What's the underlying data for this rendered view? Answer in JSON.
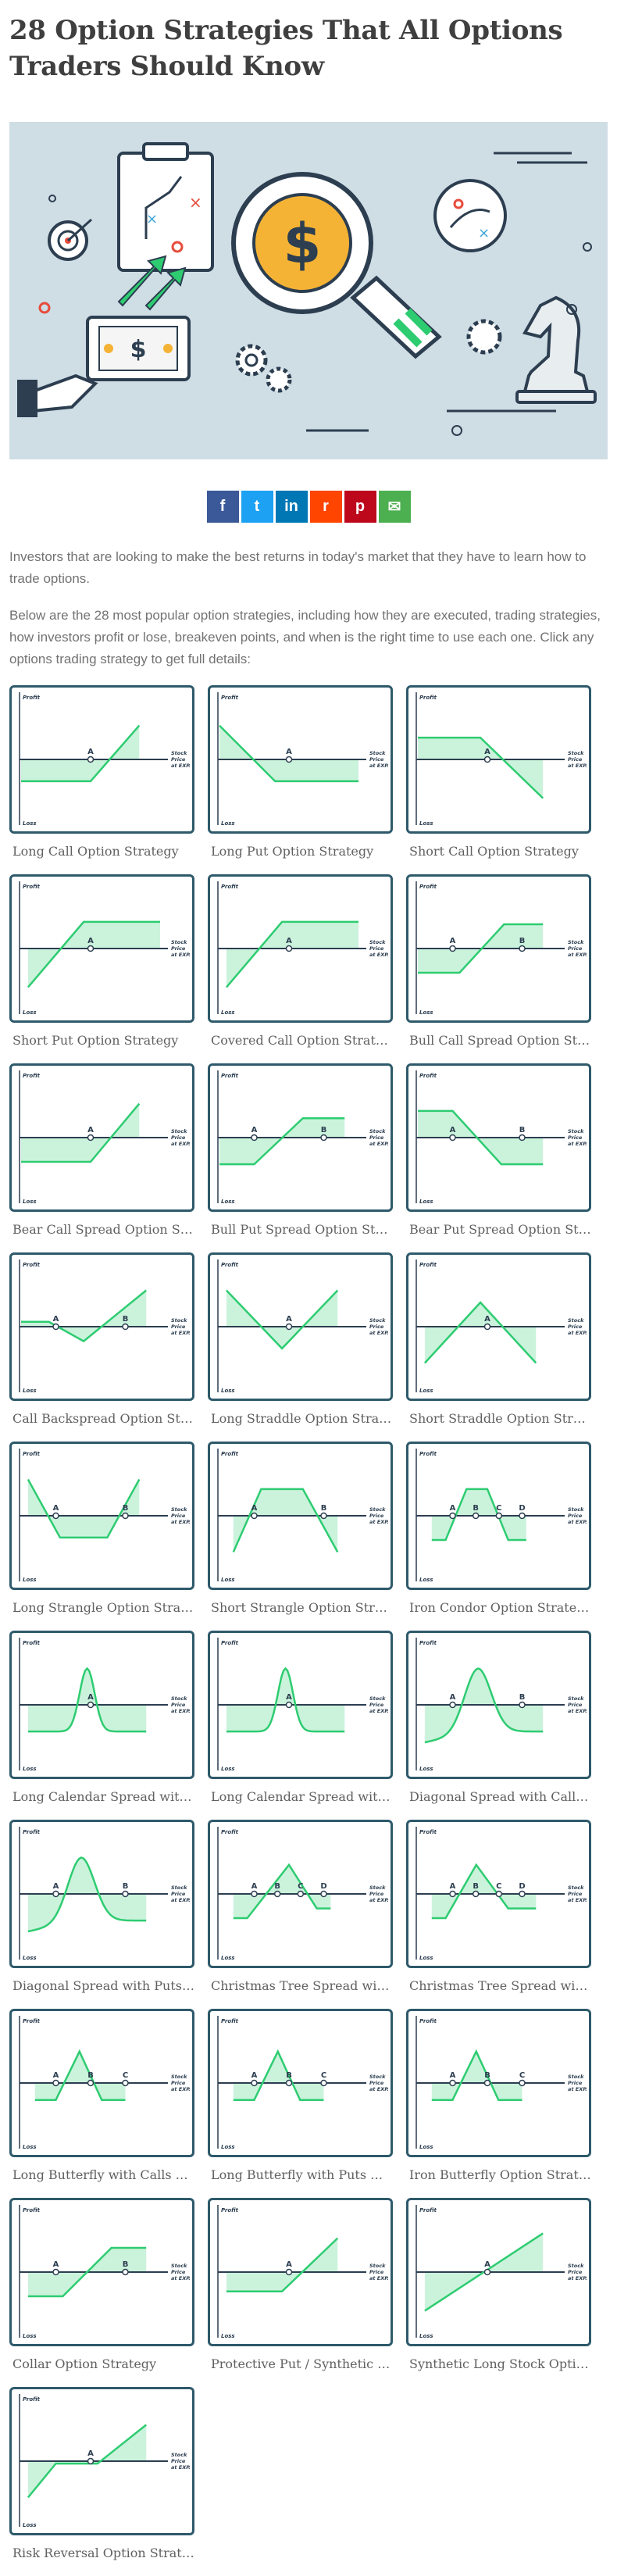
{
  "article": {
    "title": "28 Option Strategies That All Options Traders Should Know",
    "intro": [
      "Investors that are looking to make the best returns in today's market that they have to learn how to trade options.",
      "Below are the 28 most popular option strategies, including how they are executed, trading strategies, how investors profit or lose, breakeven points, and when is the right time to use each one. Click any options trading strategy to get full details:"
    ]
  },
  "hero": {
    "currency_symbol": "$"
  },
  "share": [
    {
      "name": "facebook",
      "glyph": "f",
      "color": "#3b5998"
    },
    {
      "name": "twitter",
      "glyph": "t",
      "color": "#1da1f2"
    },
    {
      "name": "linkedin",
      "glyph": "in",
      "color": "#0077b5"
    },
    {
      "name": "reddit",
      "glyph": "r",
      "color": "#ff4500"
    },
    {
      "name": "pinterest",
      "glyph": "p",
      "color": "#bd081c"
    },
    {
      "name": "email",
      "glyph": "✉",
      "color": "#4caf50"
    }
  ],
  "chart_labels": {
    "profit": "Profit",
    "loss": "Loss",
    "stock_price": [
      "Stock",
      "Price",
      "at EXP."
    ]
  },
  "strategies": [
    {
      "title": "Long Call Option Strategy",
      "shape": [
        [
          0,
          0.45
        ],
        [
          0.5,
          0.45
        ],
        [
          0.85,
          -0.7
        ]
      ],
      "pts": [
        "A"
      ]
    },
    {
      "title": "Long Put Option Strategy",
      "shape": [
        [
          0,
          -0.7
        ],
        [
          0.4,
          0.45
        ],
        [
          1,
          0.45
        ]
      ],
      "pts": [
        "A"
      ]
    },
    {
      "title": "Short Call Option Strategy",
      "shape": [
        [
          0,
          -0.45
        ],
        [
          0.45,
          -0.45
        ],
        [
          0.9,
          0.8
        ]
      ],
      "pts": [
        "A"
      ]
    },
    {
      "title": "Short Put Option Strategy",
      "shape": [
        [
          0.05,
          0.8
        ],
        [
          0.45,
          -0.55
        ],
        [
          1,
          -0.55
        ]
      ],
      "pts": [
        "A"
      ]
    },
    {
      "title": "Covered Call Option Strategy",
      "shape": [
        [
          0.05,
          0.8
        ],
        [
          0.45,
          -0.55
        ],
        [
          1,
          -0.55
        ]
      ],
      "pts": [
        "A"
      ]
    },
    {
      "title": "Bull Call Spread Option Strat...",
      "shape": [
        [
          0,
          0.5
        ],
        [
          0.3,
          0.5
        ],
        [
          0.62,
          -0.5
        ],
        [
          0.9,
          -0.5
        ]
      ],
      "pts": [
        "A",
        "B"
      ]
    },
    {
      "title": "Bear Call Spread Option Stra...",
      "shape": [
        [
          0,
          0.5
        ],
        [
          0.5,
          0.5
        ],
        [
          0.85,
          -0.7
        ]
      ],
      "pts": [
        "A"
      ]
    },
    {
      "title": "Bull Put Spread Option Strat...",
      "shape": [
        [
          0,
          0.55
        ],
        [
          0.25,
          0.55
        ],
        [
          0.6,
          -0.4
        ],
        [
          0.9,
          -0.4
        ]
      ],
      "pts": [
        "A",
        "B"
      ]
    },
    {
      "title": "Bear Put Spread Option Strat...",
      "shape": [
        [
          0,
          -0.55
        ],
        [
          0.25,
          -0.55
        ],
        [
          0.6,
          0.55
        ],
        [
          0.9,
          0.55
        ]
      ],
      "pts": [
        "A",
        "B"
      ]
    },
    {
      "title": "Call Backspread Option Strat...",
      "shape": [
        [
          0,
          -0.1
        ],
        [
          0.2,
          -0.1
        ],
        [
          0.45,
          0.3
        ],
        [
          0.9,
          -0.75
        ]
      ],
      "pts": [
        "A",
        "B"
      ]
    },
    {
      "title": "Long Straddle Option Strategy",
      "shape": [
        [
          0.05,
          -0.75
        ],
        [
          0.45,
          0.45
        ],
        [
          0.85,
          -0.75
        ]
      ],
      "pts": [
        "A"
      ]
    },
    {
      "title": "Short Straddle Option Strate...",
      "shape": [
        [
          0.05,
          0.75
        ],
        [
          0.45,
          -0.5
        ],
        [
          0.85,
          0.75
        ]
      ],
      "pts": [
        "A"
      ]
    },
    {
      "title": "Long Strangle Option Strategy",
      "shape": [
        [
          0.05,
          -0.75
        ],
        [
          0.28,
          0.45
        ],
        [
          0.62,
          0.45
        ],
        [
          0.85,
          -0.75
        ]
      ],
      "pts": [
        "A",
        "B"
      ]
    },
    {
      "title": "Short Strangle Option Strate...",
      "shape": [
        [
          0.1,
          0.75
        ],
        [
          0.3,
          -0.55
        ],
        [
          0.6,
          -0.55
        ],
        [
          0.85,
          0.75
        ]
      ],
      "pts": [
        "A",
        "B"
      ]
    },
    {
      "title": "Iron Condor Option Strategy",
      "shape": [
        [
          0.1,
          0.5
        ],
        [
          0.2,
          0.5
        ],
        [
          0.35,
          -0.55
        ],
        [
          0.5,
          -0.55
        ],
        [
          0.65,
          0.5
        ],
        [
          0.78,
          0.5
        ]
      ],
      "pts": [
        "A",
        "B",
        "C",
        "D"
      ]
    },
    {
      "title": "Long Calendar Spread with C...",
      "shape": "bell",
      "pts": [
        "A"
      ]
    },
    {
      "title": "Long Calendar Spread with P...",
      "shape": "bell",
      "pts": [
        "A"
      ]
    },
    {
      "title": "Diagonal Spread with Calls O...",
      "shape": "bellwide",
      "pts": [
        "A",
        "B"
      ]
    },
    {
      "title": "Diagonal Spread with Puts O...",
      "shape": "bellwide",
      "pts": [
        "A",
        "B"
      ]
    },
    {
      "title": "Christmas Tree Spread with ...",
      "shape": [
        [
          0.1,
          0.5
        ],
        [
          0.2,
          0.5
        ],
        [
          0.5,
          -0.6
        ],
        [
          0.7,
          0.3
        ],
        [
          0.8,
          0.3
        ]
      ],
      "pts": [
        "A",
        "B",
        "C",
        "D"
      ]
    },
    {
      "title": "Christmas Tree Spread with ...",
      "shape": [
        [
          0.1,
          0.5
        ],
        [
          0.2,
          0.5
        ],
        [
          0.42,
          -0.6
        ],
        [
          0.65,
          0.3
        ],
        [
          0.85,
          0.3
        ]
      ],
      "pts": [
        "A",
        "B",
        "C",
        "D"
      ]
    },
    {
      "title": "Long Butterfly with Calls Opt...",
      "shape": [
        [
          0.1,
          0.35
        ],
        [
          0.25,
          0.35
        ],
        [
          0.42,
          -0.65
        ],
        [
          0.58,
          0.35
        ],
        [
          0.75,
          0.35
        ]
      ],
      "pts": [
        "A",
        "B",
        "C"
      ]
    },
    {
      "title": "Long Butterfly with Puts Opti...",
      "shape": [
        [
          0.1,
          0.35
        ],
        [
          0.25,
          0.35
        ],
        [
          0.42,
          -0.65
        ],
        [
          0.58,
          0.35
        ],
        [
          0.75,
          0.35
        ]
      ],
      "pts": [
        "A",
        "B",
        "C"
      ]
    },
    {
      "title": "Iron Butterfly Option Strategy",
      "shape": [
        [
          0.1,
          0.35
        ],
        [
          0.25,
          0.35
        ],
        [
          0.42,
          -0.65
        ],
        [
          0.58,
          0.35
        ],
        [
          0.75,
          0.35
        ]
      ],
      "pts": [
        "A",
        "B",
        "C"
      ]
    },
    {
      "title": "Collar Option Strategy",
      "shape": [
        [
          0.05,
          0.5
        ],
        [
          0.3,
          0.5
        ],
        [
          0.65,
          -0.5
        ],
        [
          0.9,
          -0.5
        ]
      ],
      "pts": [
        "A",
        "B"
      ]
    },
    {
      "title": "Protective Put / Synthetic Lo...",
      "shape": [
        [
          0.05,
          0.4
        ],
        [
          0.45,
          0.4
        ],
        [
          0.85,
          -0.7
        ]
      ],
      "pts": [
        "A"
      ]
    },
    {
      "title": "Synthetic Long Stock Option ...",
      "shape": [
        [
          0.05,
          0.8
        ],
        [
          0.9,
          -0.8
        ]
      ],
      "pts": [
        "A"
      ]
    },
    {
      "title": "Risk Reversal Option Strategy",
      "shape": [
        [
          0.05,
          0.75
        ],
        [
          0.25,
          0.05
        ],
        [
          0.55,
          0.05
        ],
        [
          0.9,
          -0.75
        ]
      ],
      "pts": [
        "A"
      ]
    }
  ],
  "colors": {
    "frame": "#2e5a6b",
    "line": "#2ecc71",
    "fill": "#b9efd0",
    "axis": "#2c3e50",
    "heading": "#3f3f3f"
  }
}
